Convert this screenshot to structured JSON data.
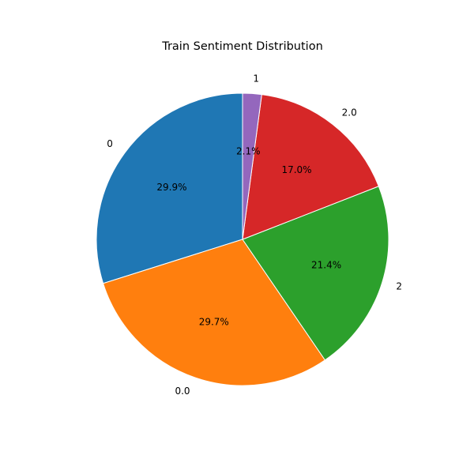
{
  "chart_data": {
    "type": "pie",
    "title": "Train Sentiment Distribution",
    "categories": [
      "0",
      "0.0",
      "2",
      "2.0",
      "1"
    ],
    "values": [
      29.9,
      29.7,
      21.4,
      17.0,
      2.1
    ],
    "pct_labels": [
      "29.9%",
      "29.7%",
      "21.4%",
      "17.0%",
      "2.1%"
    ],
    "colors": [
      "#1f77b4",
      "#ff7f0e",
      "#2ca02c",
      "#d62728",
      "#9467bd"
    ],
    "start_angle_deg": 90,
    "direction": "counterclockwise",
    "legend": "none"
  }
}
